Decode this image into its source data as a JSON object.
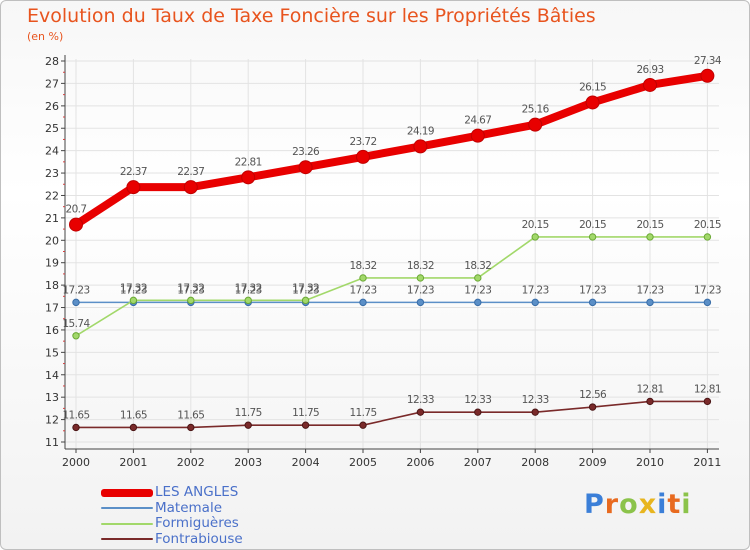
{
  "header": {
    "title": "Evolution du Taux de Taxe Foncière sur les Propriétés Bâties",
    "subtitle": "(en %)"
  },
  "logo": {
    "text": "Proxiti",
    "colors": [
      "#3b7fd8",
      "#e86a1f",
      "#8bc34a",
      "#e8b51e",
      "#3b7fd8",
      "#e86a1f",
      "#8bc34a"
    ]
  },
  "chart_data": {
    "type": "line",
    "title": "Evolution du Taux de Taxe Foncière sur les Propriétés Bâties",
    "ylabel": "(en %)",
    "ylim": [
      11,
      28
    ],
    "yticks": [
      11,
      12,
      13,
      14,
      15,
      16,
      17,
      18,
      19,
      20,
      21,
      22,
      23,
      24,
      25,
      26,
      27,
      28
    ],
    "x": [
      "2000",
      "2001",
      "2002",
      "2003",
      "2004",
      "2005",
      "2006",
      "2007",
      "2008",
      "2009",
      "2010",
      "2011"
    ],
    "grid": true,
    "legend": "bottom-left",
    "series": [
      {
        "name": "LES ANGLES",
        "color": "#e80000",
        "values": [
          20.7,
          22.37,
          22.37,
          22.81,
          23.26,
          23.72,
          24.19,
          24.67,
          25.16,
          26.15,
          26.93,
          27.34
        ],
        "labels": [
          "20.7",
          "22.37",
          "22.37",
          "22.81",
          "23.26",
          "23.72",
          "24.19",
          "24.67",
          "25.16",
          "26.15",
          "26.93",
          "27.34"
        ]
      },
      {
        "name": "Matemale",
        "color": "#5b8fc7",
        "values": [
          17.23,
          17.23,
          17.23,
          17.23,
          17.23,
          17.23,
          17.23,
          17.23,
          17.23,
          17.23,
          17.23,
          17.23
        ],
        "labels": [
          "17.23",
          "17.23",
          "17.23",
          "17.23",
          "17.23",
          "17.23",
          "17.23",
          "17.23",
          "17.23",
          "17.23",
          "17.23",
          "17.23"
        ]
      },
      {
        "name": "Formiguères",
        "color": "#a2d86a",
        "values": [
          15.74,
          17.32,
          17.32,
          17.32,
          17.32,
          18.32,
          18.32,
          18.32,
          20.15,
          20.15,
          20.15,
          20.15
        ],
        "labels": [
          "15.74",
          "17.32",
          "17.32",
          "17.32",
          "17.32",
          "18.32",
          "18.32",
          "18.32",
          "20.15",
          "20.15",
          "20.15",
          "20.15"
        ]
      },
      {
        "name": "Fontrabiouse",
        "color": "#7a2a2a",
        "values": [
          11.65,
          11.65,
          11.65,
          11.75,
          11.75,
          11.75,
          12.33,
          12.33,
          12.33,
          12.56,
          12.81,
          12.81
        ],
        "labels": [
          "11.65",
          "11.65",
          "11.65",
          "11.75",
          "11.75",
          "11.75",
          "12.33",
          "12.33",
          "12.33",
          "12.56",
          "12.81",
          "12.81"
        ]
      }
    ]
  }
}
